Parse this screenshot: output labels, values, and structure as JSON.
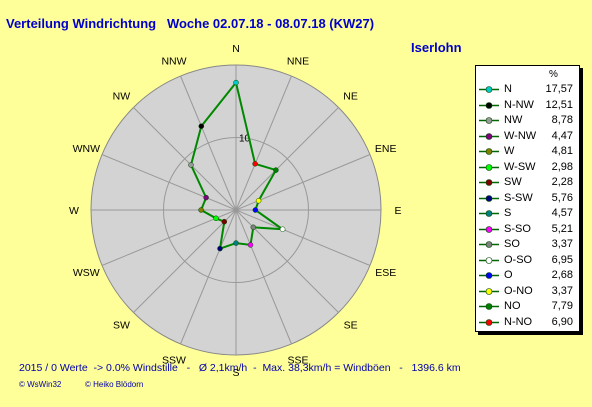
{
  "header": {
    "title": "Verteilung Windrichtung   Woche 02.07.18 - 08.07.18 (KW27)",
    "location": "Iserlohn"
  },
  "chart_data": {
    "type": "radar",
    "directions": [
      "N",
      "NNE",
      "NE",
      "ENE",
      "E",
      "ESE",
      "SE",
      "SSE",
      "S",
      "SSW",
      "SW",
      "WSW",
      "W",
      "WNW",
      "NW",
      "NNW"
    ],
    "values": [
      17.57,
      6.9,
      7.79,
      3.37,
      2.68,
      6.95,
      3.37,
      5.21,
      4.57,
      5.76,
      2.28,
      2.98,
      4.81,
      4.47,
      8.78,
      12.51
    ],
    "rmax": 20,
    "rings": [
      10
    ],
    "ring_label": "10",
    "unit": "%",
    "line_color": "#008800",
    "disc_color": "#d3d3d3",
    "legend": [
      {
        "label": "N",
        "value": "17,57",
        "color": "#00cccc"
      },
      {
        "label": "N-NW",
        "value": "12,51",
        "color": "#000000"
      },
      {
        "label": "NW",
        "value": "8,78",
        "color": "#999999"
      },
      {
        "label": "W-NW",
        "value": "4,47",
        "color": "#800080"
      },
      {
        "label": "W",
        "value": "4,81",
        "color": "#808000"
      },
      {
        "label": "W-SW",
        "value": "2,98",
        "color": "#00ff00"
      },
      {
        "label": "SW",
        "value": "2,28",
        "color": "#800000"
      },
      {
        "label": "S-SW",
        "value": "5,76",
        "color": "#000080"
      },
      {
        "label": "S",
        "value": "4,57",
        "color": "#008080"
      },
      {
        "label": "S-SO",
        "value": "5,21",
        "color": "#ff00ff"
      },
      {
        "label": "SO",
        "value": "3,37",
        "color": "#808080"
      },
      {
        "label": "O-SO",
        "value": "6,95",
        "color": "#ffffff"
      },
      {
        "label": "O",
        "value": "2,68",
        "color": "#0000ff"
      },
      {
        "label": "O-NO",
        "value": "3,37",
        "color": "#ffff00"
      },
      {
        "label": "NO",
        "value": "7,79",
        "color": "#008000"
      },
      {
        "label": "N-NO",
        "value": "6,90",
        "color": "#ff0000"
      }
    ]
  },
  "footer": {
    "stats": "2015 / 0 Werte  -> 0.0% Windstille   -   Ø 2,1km/h  -  Max. 38,3km/h = Windböen   -   1396.6 km",
    "credit_left": "© WsWin32",
    "credit_right": "© Heiko Blödorn"
  }
}
